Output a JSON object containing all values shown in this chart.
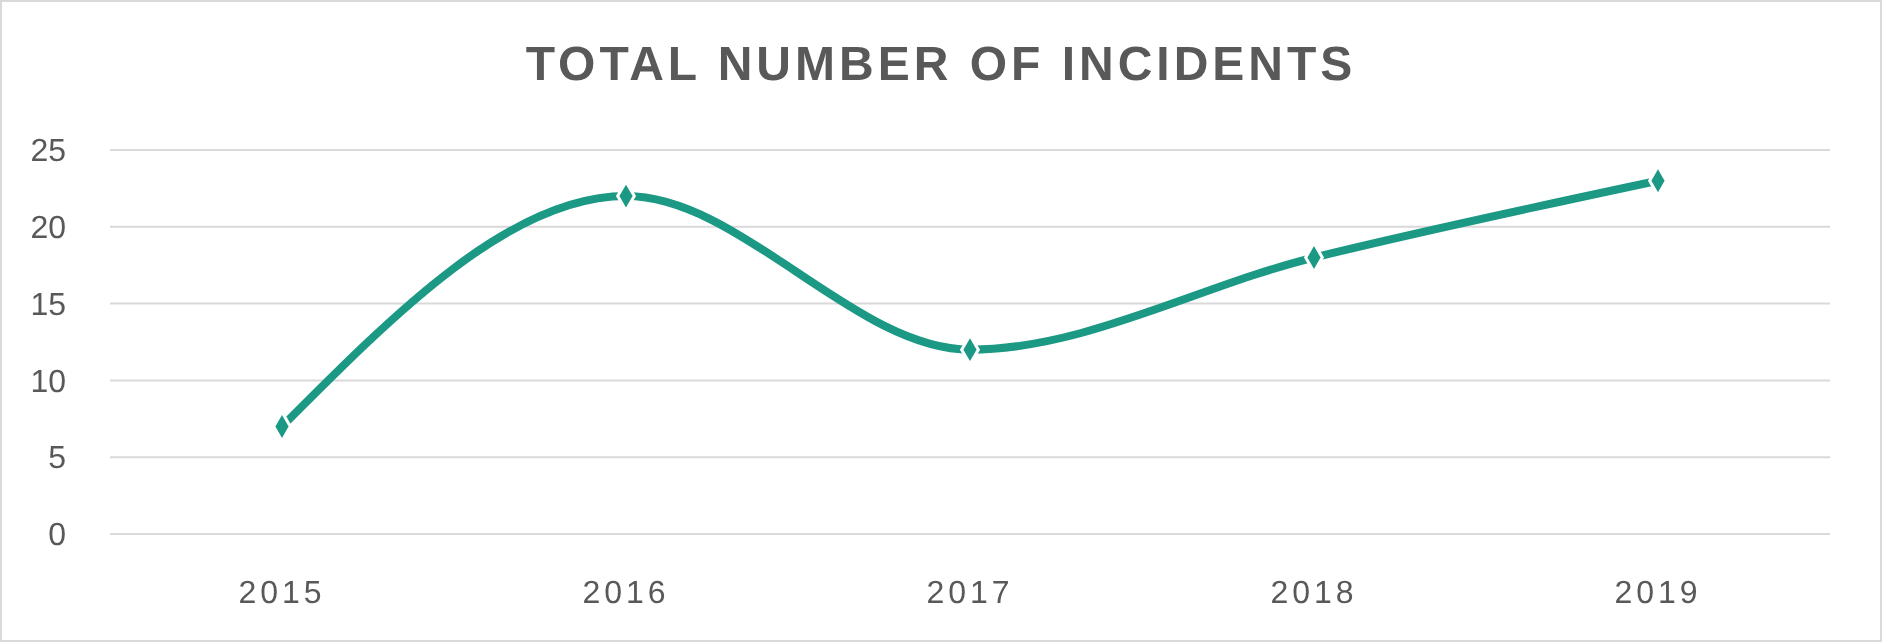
{
  "chart_data": {
    "type": "line",
    "title": "TOTAL NUMBER OF INCIDENTS",
    "categories": [
      "2015",
      "2016",
      "2017",
      "2018",
      "2019"
    ],
    "series": [
      {
        "color": "#1b9984",
        "values": [
          7,
          22,
          12,
          18,
          23
        ]
      }
    ],
    "ylim": [
      0,
      25
    ],
    "yticks": [
      0,
      5,
      10,
      15,
      20,
      25
    ],
    "grid": "y",
    "marker": "diamond",
    "line_style": "solid"
  }
}
